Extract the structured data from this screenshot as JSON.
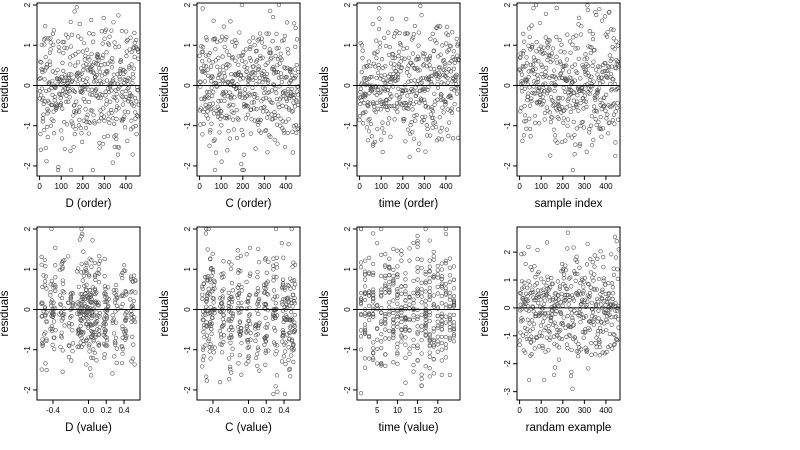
{
  "chart_data": [
    {
      "type": "scatter",
      "xlabel": "D (order)",
      "ylabel": "residuals",
      "xticks": [
        0,
        100,
        200,
        300,
        400
      ],
      "yticks": [
        -2,
        -1,
        0,
        1,
        2
      ],
      "xlim": [
        -12,
        465
      ],
      "ylim": [
        -2.25,
        2.05
      ],
      "hline": 0,
      "n": 460,
      "x": "sample order 0-460",
      "y_summary": "residuals roughly N(0,0.8), range about -2 to 2"
    },
    {
      "type": "scatter",
      "xlabel": "C (order)",
      "ylabel": "residuals",
      "xticks": [
        0,
        100,
        200,
        300,
        400
      ],
      "yticks": [
        -2,
        -1,
        0,
        1,
        2
      ],
      "xlim": [
        -12,
        465
      ],
      "ylim": [
        -2.25,
        2.05
      ],
      "hline": 0,
      "n": 460,
      "x": "sample order 0-460",
      "y_summary": "residuals roughly N(0,0.8), range about -2 to 2"
    },
    {
      "type": "scatter",
      "xlabel": "time (order)",
      "ylabel": "residuals",
      "xticks": [
        0,
        100,
        200,
        300,
        400
      ],
      "yticks": [
        -2,
        -1,
        0,
        1,
        2
      ],
      "xlim": [
        -12,
        465
      ],
      "ylim": [
        -2.25,
        2.05
      ],
      "hline": 0,
      "n": 460,
      "x": "sample order 0-460",
      "y_summary": "residuals roughly N(0,0.8), range about -2 to 2"
    },
    {
      "type": "scatter",
      "xlabel": "sample index",
      "ylabel": "residuals",
      "xticks": [
        0,
        100,
        200,
        300,
        400
      ],
      "yticks": [
        -2,
        -1,
        0,
        1,
        2
      ],
      "xlim": [
        -12,
        465
      ],
      "ylim": [
        -2.25,
        2.05
      ],
      "hline": 0,
      "n": 460,
      "x": "sample index 0-460",
      "y_summary": "residuals roughly N(0,0.8), range about -2 to 2"
    },
    {
      "type": "scatter",
      "xlabel": "D (value)",
      "ylabel": "residuals",
      "xticks": [
        -0.4,
        0.0,
        0.2,
        0.4
      ],
      "xtick_labels": [
        "-0.4",
        "0.0",
        "0.2",
        "0.4"
      ],
      "yticks": [
        -2,
        -1,
        0,
        1,
        2
      ],
      "xlim": [
        -0.58,
        0.58
      ],
      "ylim": [
        -2.25,
        2.05
      ],
      "hline": 0,
      "n": 460,
      "x_summary": "D values spread -0.55 to 0.55, clustered near -0.1 to 0.1",
      "y_summary": "residuals roughly N(0,0.8)"
    },
    {
      "type": "scatter",
      "xlabel": "C (value)",
      "ylabel": "residuals",
      "xticks": [
        -0.4,
        0.0,
        0.2,
        0.4
      ],
      "xtick_labels": [
        "-0.4",
        "0.0",
        "0.2",
        "0.4"
      ],
      "yticks": [
        -2,
        -1,
        0,
        1,
        2
      ],
      "xlim": [
        -0.58,
        0.58
      ],
      "ylim": [
        -2.25,
        2.05
      ],
      "hline": 0,
      "n": 460,
      "x_summary": "C values spread -0.5 to 0.5, clustered near ends",
      "y_summary": "residuals roughly N(0,0.8)"
    },
    {
      "type": "scatter",
      "xlabel": "time (value)",
      "ylabel": "residuals",
      "xticks": [
        5,
        10,
        15,
        20
      ],
      "yticks": [
        -2,
        -1,
        0,
        1,
        2
      ],
      "xlim": [
        0,
        25.5
      ],
      "ylim": [
        -2.25,
        2.05
      ],
      "hline": 0,
      "n": 460,
      "x_summary": "time values 1-24 in discrete steps",
      "y_summary": "residuals roughly N(0,0.8)"
    },
    {
      "type": "scatter",
      "xlabel": "randam example",
      "ylabel": "residuals",
      "xticks": [
        0,
        100,
        200,
        300,
        400
      ],
      "yticks": [
        -3,
        -2,
        -1,
        0,
        1,
        2
      ],
      "xlim": [
        -12,
        465
      ],
      "ylim": [
        -3.3,
        2.9
      ],
      "hline": 0,
      "n": 460,
      "x": "index 0-460",
      "y_summary": "random normal residuals, range about -3.2 to 2.6"
    }
  ]
}
